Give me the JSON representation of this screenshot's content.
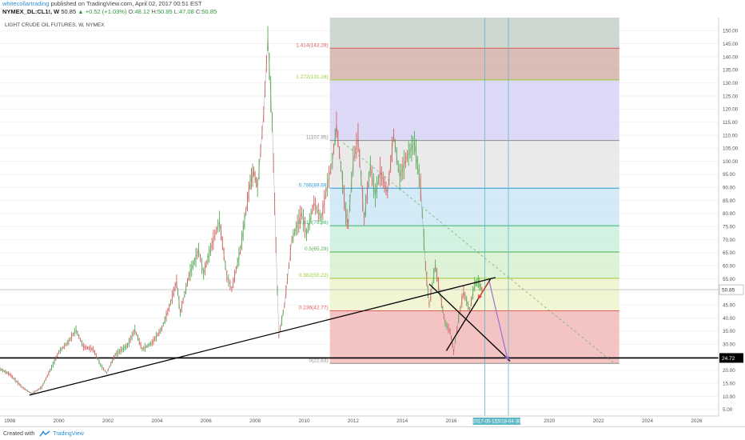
{
  "header": {
    "author": "whitecollartrading",
    "published_text": "published on TradingView.com, April 02, 2017 00:51 EST",
    "symbol": "NYMEX_DL:CL1!, W",
    "last": "50.85",
    "change": "+0.52 (+1.03%)",
    "open_label": "O:",
    "open": "48.12",
    "high_label": "H:",
    "high": "50.85",
    "low_label": "L:",
    "low": "47.08",
    "close_label": "C:",
    "close": "50.85"
  },
  "panel_title": "LIGHT CRUDE OIL FUTURES, W, NYMEX",
  "footer": {
    "created_with": "Created with",
    "brand": "TradingView"
  },
  "chart_data": {
    "type": "line",
    "title": "LIGHT CRUDE OIL FUTURES, W, NYMEX",
    "x_axis": {
      "type": "year",
      "range": [
        1997.6,
        2026.9
      ],
      "tick_labels": [
        "1998",
        "2000",
        "2002",
        "2004",
        "2006",
        "2008",
        "2010",
        "2012",
        "2014",
        "2016",
        "2018",
        "2020",
        "2022",
        "2024",
        "2026"
      ],
      "highlighted_labels": [
        "2017-05-15",
        "2018-04-30"
      ]
    },
    "y_axis": {
      "side": "right",
      "range": [
        2.5,
        155
      ],
      "ticks": [
        5,
        10,
        15,
        20,
        25,
        30,
        35,
        40,
        45,
        50,
        55,
        60,
        65,
        70,
        75,
        80,
        85,
        90,
        95,
        100,
        105,
        110,
        115,
        120,
        125,
        130,
        135,
        140,
        145,
        150
      ],
      "tick_labels": [
        "5.00",
        "10.00",
        "15.00",
        "20.00",
        "25.00",
        "30.00",
        "35.00",
        "40.00",
        "45.00",
        "50.00",
        "55.00",
        "60.00",
        "65.00",
        "70.00",
        "75.00",
        "80.00",
        "85.00",
        "90.00",
        "95.00",
        "100.00",
        "105.00",
        "110.00",
        "115.00",
        "120.00",
        "125.00",
        "130.00",
        "135.00",
        "140.00",
        "145.00",
        "150.00"
      ],
      "current_price_label": "50.85",
      "horizontal_line_label": "24.72"
    },
    "series": [
      {
        "points": [
          [
            1997.6,
            20.5
          ],
          [
            1998.0,
            18.5
          ],
          [
            1998.5,
            13.5
          ],
          [
            1998.9,
            11.0
          ],
          [
            1999.3,
            13.5
          ],
          [
            1999.7,
            21.0
          ],
          [
            2000.0,
            27.0
          ],
          [
            2000.4,
            31.0
          ],
          [
            2000.7,
            35.5
          ],
          [
            2001.0,
            29.0
          ],
          [
            2001.4,
            28.0
          ],
          [
            2001.7,
            22.0
          ],
          [
            2001.95,
            19.0
          ],
          [
            2002.3,
            26.0
          ],
          [
            2002.8,
            29.5
          ],
          [
            2003.1,
            35.5
          ],
          [
            2003.4,
            28.0
          ],
          [
            2003.8,
            30.5
          ],
          [
            2004.2,
            36.0
          ],
          [
            2004.5,
            44.0
          ],
          [
            2004.8,
            54.0
          ],
          [
            2004.95,
            42.0
          ],
          [
            2005.3,
            56.0
          ],
          [
            2005.7,
            66.0
          ],
          [
            2005.9,
            57.0
          ],
          [
            2006.3,
            70.0
          ],
          [
            2006.55,
            77.0
          ],
          [
            2006.85,
            56.0
          ],
          [
            2007.05,
            51.0
          ],
          [
            2007.4,
            66.0
          ],
          [
            2007.8,
            92.0
          ],
          [
            2007.95,
            96.0
          ],
          [
            2008.1,
            90.0
          ],
          [
            2008.35,
            118.0
          ],
          [
            2008.52,
            147.0
          ],
          [
            2008.7,
            115.0
          ],
          [
            2008.85,
            68.0
          ],
          [
            2008.97,
            33.0
          ],
          [
            2009.2,
            45.0
          ],
          [
            2009.5,
            70.0
          ],
          [
            2009.9,
            80.0
          ],
          [
            2010.1,
            72.0
          ],
          [
            2010.4,
            84.0
          ],
          [
            2010.7,
            78.0
          ],
          [
            2010.95,
            91.0
          ],
          [
            2011.15,
            100.0
          ],
          [
            2011.32,
            114.0
          ],
          [
            2011.5,
            98.0
          ],
          [
            2011.7,
            80.0
          ],
          [
            2011.8,
            76.0
          ],
          [
            2012.0,
            100.0
          ],
          [
            2012.2,
            109.0
          ],
          [
            2012.45,
            78.0
          ],
          [
            2012.7,
            98.0
          ],
          [
            2012.9,
            87.0
          ],
          [
            2013.1,
            96.0
          ],
          [
            2013.4,
            88.0
          ],
          [
            2013.65,
            110.0
          ],
          [
            2013.9,
            94.0
          ],
          [
            2014.2,
            102.0
          ],
          [
            2014.5,
            107.0
          ],
          [
            2014.75,
            90.0
          ],
          [
            2014.95,
            60.0
          ],
          [
            2015.1,
            45.0
          ],
          [
            2015.35,
            60.0
          ],
          [
            2015.6,
            46.0
          ],
          [
            2015.75,
            38.0
          ],
          [
            2015.95,
            35.0
          ],
          [
            2016.1,
            27.0
          ],
          [
            2016.3,
            40.0
          ],
          [
            2016.5,
            50.0
          ],
          [
            2016.75,
            43.0
          ],
          [
            2016.95,
            53.0
          ],
          [
            2017.1,
            54.0
          ],
          [
            2017.25,
            50.85
          ]
        ]
      }
    ],
    "fibonacci": {
      "levels": [
        {
          "ratio": "0",
          "price": 22.63,
          "label": "0(22.63)",
          "color": "#8c8c8c"
        },
        {
          "ratio": "0.236",
          "price": 42.77,
          "label": "0.236(42.77)",
          "color": "#e05b5b"
        },
        {
          "ratio": "0.382",
          "price": 55.22,
          "label": "0.382(55.22)",
          "color": "#9acd32"
        },
        {
          "ratio": "0.5",
          "price": 65.29,
          "label": "0.5(65.29)",
          "color": "#4caf50"
        },
        {
          "ratio": "0.618",
          "price": 75.36,
          "label": "0.618(75.36)",
          "color": "#3cb371"
        },
        {
          "ratio": "0.786",
          "price": 89.69,
          "label": "0.786(89.69)",
          "color": "#2c9bd6"
        },
        {
          "ratio": "1",
          "price": 107.95,
          "label": "1(107.95)",
          "color": "#8c8c8c"
        },
        {
          "ratio": "1.272",
          "price": 131.16,
          "label": "1.272(131.16)",
          "color": "#9acd32"
        },
        {
          "ratio": "1.414",
          "price": 143.28,
          "label": "1.414(143.28)",
          "color": "#e05b5b"
        }
      ],
      "zones": [
        {
          "from": 22.63,
          "to": 42.77,
          "color": "#f2b8b8"
        },
        {
          "from": 42.77,
          "to": 55.22,
          "color": "#eef3cc"
        },
        {
          "from": 55.22,
          "to": 65.29,
          "color": "#d7f0cf"
        },
        {
          "from": 65.29,
          "to": 75.36,
          "color": "#ccf0dc"
        },
        {
          "from": 75.36,
          "to": 89.69,
          "color": "#cce6f5"
        },
        {
          "from": 89.69,
          "to": 107.95,
          "color": "#e6e6e6"
        },
        {
          "from": 107.95,
          "to": 131.16,
          "color": "#d6d4f5"
        },
        {
          "from": 131.16,
          "to": 143.28,
          "color": "#d4b1a8"
        },
        {
          "from": 143.28,
          "to": 155,
          "color": "#c5d0c8"
        }
      ],
      "x_range": [
        2011.05,
        2022.85
      ]
    },
    "annotations": {
      "horizontal_line": {
        "price": 24.72,
        "color": "#000000"
      },
      "current_price_line": {
        "price": 50.85,
        "color": "#aaaaaa"
      },
      "trendlines": [
        {
          "from": [
            1998.8,
            10.5
          ],
          "to": [
            2017.8,
            55.5
          ],
          "color": "#000000"
        },
        {
          "from": [
            2015.1,
            53.0
          ],
          "to": [
            2018.4,
            23.5
          ],
          "color": "#000000"
        },
        {
          "from": [
            2015.8,
            27.5
          ],
          "to": [
            2017.6,
            55.0
          ],
          "color": "#000000"
        }
      ],
      "dashed_projection": {
        "from": [
          2011.6,
          107.0
        ],
        "to": [
          2022.6,
          23.0
        ],
        "color": "#4caf50"
      },
      "projection_arrows": [
        {
          "from": [
            2017.55,
            54.0
          ],
          "to": [
            2017.1,
            47.5
          ],
          "color": "#e53935"
        },
        {
          "from": [
            2017.55,
            54.0
          ],
          "to": [
            2018.3,
            24.0
          ],
          "color": "#9c6fd6"
        }
      ],
      "vertical_markers": [
        {
          "x": 2017.37,
          "color": "#5fb8c6"
        },
        {
          "x": 2018.33,
          "color": "#5fb8c6"
        }
      ]
    }
  }
}
